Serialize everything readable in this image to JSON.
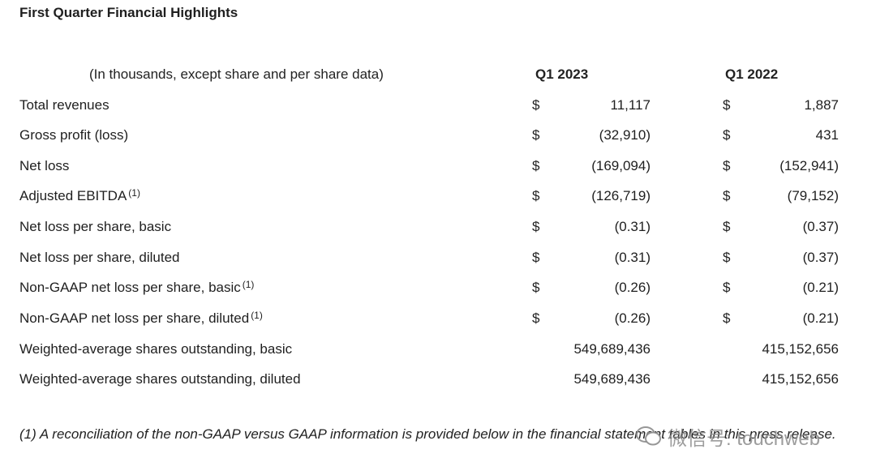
{
  "title": "First Quarter Financial Highlights",
  "header": {
    "description": "(In thousands, except share and per share data)",
    "col1": "Q1 2023",
    "col2": "Q1 2022"
  },
  "rows": [
    {
      "label": "Total revenues",
      "sup": "",
      "cur1": "$",
      "v1": "11,117",
      "cur2": "$",
      "v2": "1,887"
    },
    {
      "label": "Gross profit (loss)",
      "sup": "",
      "cur1": "$",
      "v1": "(32,910)",
      "cur2": "$",
      "v2": "431"
    },
    {
      "label": "Net loss",
      "sup": "",
      "cur1": "$",
      "v1": "(169,094)",
      "cur2": "$",
      "v2": "(152,941)"
    },
    {
      "label": "Adjusted EBITDA",
      "sup": "(1)",
      "cur1": "$",
      "v1": "(126,719)",
      "cur2": "$",
      "v2": "(79,152)"
    },
    {
      "label": "Net loss per share, basic",
      "sup": "",
      "cur1": "$",
      "v1": "(0.31)",
      "cur2": "$",
      "v2": "(0.37)"
    },
    {
      "label": "Net loss per share, diluted",
      "sup": "",
      "cur1": "$",
      "v1": "(0.31)",
      "cur2": "$",
      "v2": "(0.37)"
    },
    {
      "label": "Non-GAAP net loss per share, basic",
      "sup": "(1)",
      "cur1": "$",
      "v1": "(0.26)",
      "cur2": "$",
      "v2": "(0.21)"
    },
    {
      "label": "Non-GAAP net loss per share, diluted",
      "sup": "(1)",
      "cur1": "$",
      "v1": "(0.26)",
      "cur2": "$",
      "v2": "(0.21)"
    },
    {
      "label": "Weighted-average shares outstanding, basic",
      "sup": "",
      "cur1": "",
      "v1": "549,689,436",
      "cur2": "",
      "v2": "415,152,656"
    },
    {
      "label": "Weighted-average shares outstanding, diluted",
      "sup": "",
      "cur1": "",
      "v1": "549,689,436",
      "cur2": "",
      "v2": "415,152,656"
    }
  ],
  "footnote": "(1) A reconciliation of the non-GAAP versus GAAP information is provided below in the financial statement tables in this press release.",
  "watermark": {
    "text": "微信号: touchweb",
    "icon": "wechat-icon"
  }
}
